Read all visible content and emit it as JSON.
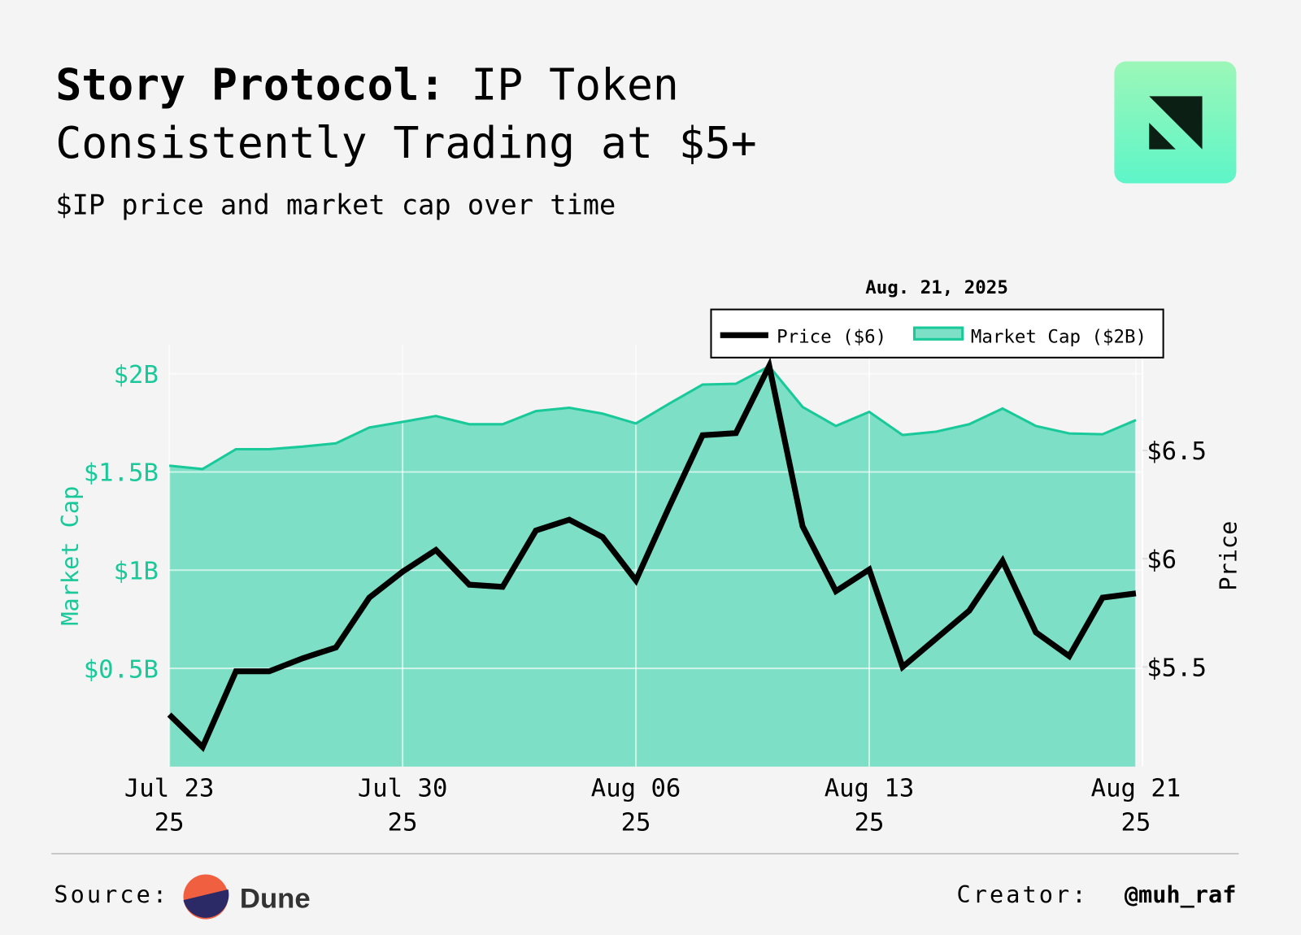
{
  "chart_data": {
    "type": "area-line",
    "title": [
      "Story Protocol:",
      "IP Token",
      "Consistently Trading at $5+"
    ],
    "subtitle": "$IP price and market cap over time",
    "watermark": "OurNetwork",
    "y_label": "Market Cap",
    "y2_label": "Price",
    "legend_header": "Aug. 21, 2025",
    "legend_labels": [
      "Price ($6)",
      "Market Cap ($2B)"
    ],
    "x": [
      "2025-07-23",
      "2025-07-24",
      "2025-07-25",
      "2025-07-26",
      "2025-07-27",
      "2025-07-28",
      "2025-07-29",
      "2025-07-30",
      "2025-07-31",
      "2025-08-01",
      "2025-08-02",
      "2025-08-03",
      "2025-08-04",
      "2025-08-05",
      "2025-08-06",
      "2025-08-07",
      "2025-08-08",
      "2025-08-09",
      "2025-08-10",
      "2025-08-11",
      "2025-08-12",
      "2025-08-13",
      "2025-08-14",
      "2025-08-15",
      "2025-08-16",
      "2025-08-17",
      "2025-08-18",
      "2025-08-19",
      "2025-08-20",
      "2025-08-21"
    ],
    "xlim": [
      "2025-07-23",
      "2025-08-21"
    ],
    "xticks": [
      {
        "value": "2025-07-23",
        "label": "Jul 23\n25"
      },
      {
        "value": "2025-07-30",
        "label": "Jul 30\n25"
      },
      {
        "value": "2025-08-06",
        "label": "Aug 06\n25"
      },
      {
        "value": "2025-08-13",
        "label": "Aug 13\n25"
      },
      {
        "value": "2025-08-21",
        "label": "Aug 21\n25"
      }
    ],
    "series": [
      {
        "name": "Price",
        "color": "#000000",
        "axis": "y2",
        "values": [
          5.28,
          5.13,
          5.48,
          5.48,
          5.54,
          5.59,
          5.82,
          5.94,
          6.04,
          5.88,
          5.87,
          6.13,
          6.18,
          6.1,
          5.9,
          6.24,
          6.57,
          6.58,
          6.89,
          6.15,
          5.85,
          5.95,
          5.5,
          5.63,
          5.76,
          5.99,
          5.66,
          5.55,
          5.82,
          5.84
        ]
      },
      {
        "name": "Market Cap",
        "color": "#19c99a",
        "fill": "#7de0c6",
        "axis": "y",
        "values": [
          1532000000,
          1515000000,
          1616000000,
          1616000000,
          1629000000,
          1646000000,
          1726000000,
          1755000000,
          1785000000,
          1743000000,
          1743000000,
          1810000000,
          1827000000,
          1797000000,
          1747000000,
          1848000000,
          1945000000,
          1949000000,
          2038000000,
          1831000000,
          1734000000,
          1806000000,
          1688000000,
          1705000000,
          1743000000,
          1823000000,
          1734000000,
          1696000000,
          1692000000,
          1764000000
        ]
      }
    ],
    "ylim": [
      0,
      2150000000
    ],
    "yticks": [
      {
        "value": 500000000,
        "label": "$0.5B"
      },
      {
        "value": 1000000000,
        "label": "$1B"
      },
      {
        "value": 1500000000,
        "label": "$1.5B"
      },
      {
        "value": 2000000000,
        "label": "$2B"
      }
    ],
    "y2lim": [
      5.04,
      6.99
    ],
    "y2ticks": [
      {
        "value": 5.5,
        "label": "$5.5"
      },
      {
        "value": 6,
        "label": "$6"
      },
      {
        "value": 6.5,
        "label": "$6.5"
      }
    ],
    "grid": true,
    "legend": "top-right"
  },
  "footer": {
    "source_label": "Source:",
    "source_name": "Dune",
    "creator_label": "Creator:",
    "creator": "@muh_raf"
  }
}
